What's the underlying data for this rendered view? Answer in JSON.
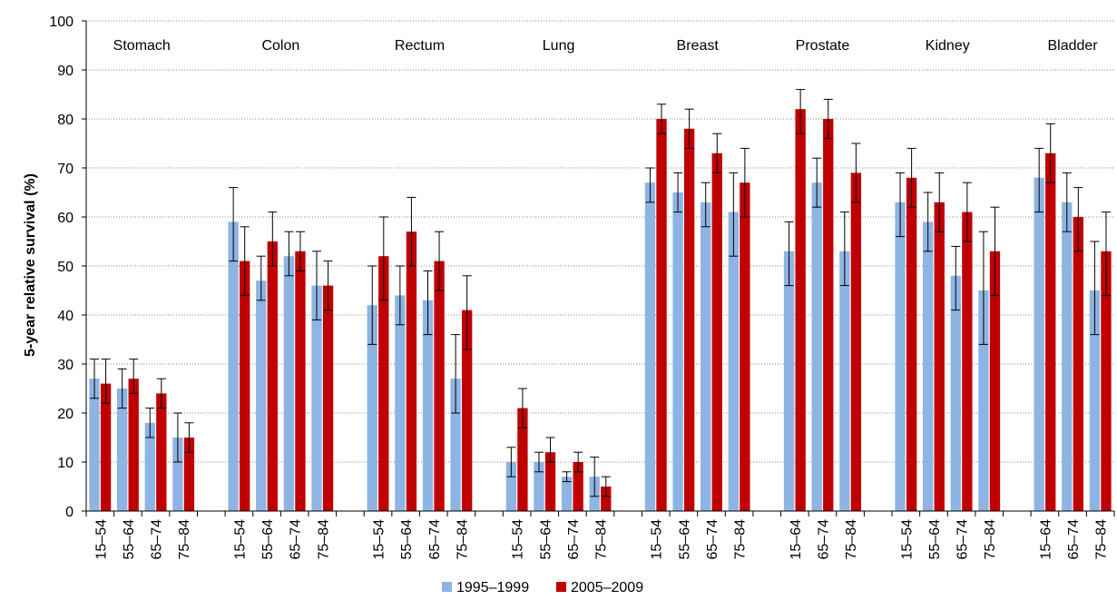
{
  "chart_data": {
    "type": "bar",
    "title": "",
    "xlabel": "",
    "ylabel": "5-year relative survival (%)",
    "ylim": [
      0,
      100
    ],
    "yticks": [
      0,
      10,
      20,
      30,
      40,
      50,
      60,
      70,
      80,
      90,
      100
    ],
    "grid": "horizontal dotted",
    "legend_position": "bottom",
    "series": [
      {
        "name": "1995–1999",
        "color": "#8EB4E3"
      },
      {
        "name": "2005–2009",
        "color": "#C00000"
      }
    ],
    "groups": [
      {
        "name": "Stomach",
        "categories": [
          {
            "label": "15–54",
            "values": [
              27,
              26
            ],
            "err_low": [
              23,
              22
            ],
            "err_high": [
              31,
              31
            ]
          },
          {
            "label": "55–64",
            "values": [
              25,
              27
            ],
            "err_low": [
              21,
              24
            ],
            "err_high": [
              29,
              31
            ]
          },
          {
            "label": "65–74",
            "values": [
              18,
              24
            ],
            "err_low": [
              15,
              21
            ],
            "err_high": [
              21,
              27
            ]
          },
          {
            "label": "75–84",
            "values": [
              15,
              15
            ],
            "err_low": [
              10,
              12
            ],
            "err_high": [
              20,
              18
            ]
          }
        ]
      },
      {
        "name": "Colon",
        "categories": [
          {
            "label": "15–54",
            "values": [
              59,
              51
            ],
            "err_low": [
              51,
              44
            ],
            "err_high": [
              66,
              58
            ]
          },
          {
            "label": "55–64",
            "values": [
              47,
              55
            ],
            "err_low": [
              43,
              50
            ],
            "err_high": [
              52,
              61
            ]
          },
          {
            "label": "65–74",
            "values": [
              52,
              53
            ],
            "err_low": [
              48,
              49
            ],
            "err_high": [
              57,
              57
            ]
          },
          {
            "label": "75–84",
            "values": [
              46,
              46
            ],
            "err_low": [
              39,
              41
            ],
            "err_high": [
              53,
              51
            ]
          }
        ]
      },
      {
        "name": "Rectum",
        "categories": [
          {
            "label": "15–54",
            "values": [
              42,
              52
            ],
            "err_low": [
              34,
              43
            ],
            "err_high": [
              50,
              60
            ]
          },
          {
            "label": "55–64",
            "values": [
              44,
              57
            ],
            "err_low": [
              38,
              50
            ],
            "err_high": [
              50,
              64
            ]
          },
          {
            "label": "65–74",
            "values": [
              43,
              51
            ],
            "err_low": [
              36,
              45
            ],
            "err_high": [
              49,
              57
            ]
          },
          {
            "label": "75–84",
            "values": [
              27,
              41
            ],
            "err_low": [
              20,
              33
            ],
            "err_high": [
              36,
              48
            ]
          }
        ]
      },
      {
        "name": "Lung",
        "categories": [
          {
            "label": "15–54",
            "values": [
              10,
              21
            ],
            "err_low": [
              7,
              17
            ],
            "err_high": [
              13,
              25
            ]
          },
          {
            "label": "55–64",
            "values": [
              10,
              12
            ],
            "err_low": [
              8,
              10
            ],
            "err_high": [
              12,
              15
            ]
          },
          {
            "label": "65–74",
            "values": [
              7,
              10
            ],
            "err_low": [
              6,
              8
            ],
            "err_high": [
              8,
              12
            ]
          },
          {
            "label": "75–84",
            "values": [
              7,
              5
            ],
            "err_low": [
              3,
              3
            ],
            "err_high": [
              11,
              7
            ]
          }
        ]
      },
      {
        "name": "Breast",
        "categories": [
          {
            "label": "15–54",
            "values": [
              67,
              80
            ],
            "err_low": [
              63,
              77
            ],
            "err_high": [
              70,
              83
            ]
          },
          {
            "label": "55–64",
            "values": [
              65,
              78
            ],
            "err_low": [
              61,
              74
            ],
            "err_high": [
              69,
              82
            ]
          },
          {
            "label": "65–74",
            "values": [
              63,
              73
            ],
            "err_low": [
              58,
              69
            ],
            "err_high": [
              67,
              77
            ]
          },
          {
            "label": "75–84",
            "values": [
              61,
              67
            ],
            "err_low": [
              52,
              60
            ],
            "err_high": [
              69,
              74
            ]
          }
        ]
      },
      {
        "name": "Prostate",
        "categories": [
          {
            "label": "15–64",
            "values": [
              53,
              82
            ],
            "err_low": [
              46,
              77
            ],
            "err_high": [
              59,
              86
            ]
          },
          {
            "label": "65–74",
            "values": [
              67,
              80
            ],
            "err_low": [
              62,
              76
            ],
            "err_high": [
              72,
              84
            ]
          },
          {
            "label": "75–84",
            "values": [
              53,
              69
            ],
            "err_low": [
              46,
              63
            ],
            "err_high": [
              61,
              75
            ]
          }
        ]
      },
      {
        "name": "Kidney",
        "categories": [
          {
            "label": "15–54",
            "values": [
              63,
              68
            ],
            "err_low": [
              56,
              62
            ],
            "err_high": [
              69,
              74
            ]
          },
          {
            "label": "55–64",
            "values": [
              59,
              63
            ],
            "err_low": [
              53,
              57
            ],
            "err_high": [
              65,
              69
            ]
          },
          {
            "label": "65–74",
            "values": [
              48,
              61
            ],
            "err_low": [
              41,
              55
            ],
            "err_high": [
              54,
              67
            ]
          },
          {
            "label": "75–84",
            "values": [
              45,
              53
            ],
            "err_low": [
              34,
              44
            ],
            "err_high": [
              57,
              62
            ]
          }
        ]
      },
      {
        "name": "Bladder",
        "categories": [
          {
            "label": "15–64",
            "values": [
              68,
              73
            ],
            "err_low": [
              61,
              67
            ],
            "err_high": [
              74,
              79
            ]
          },
          {
            "label": "65–74",
            "values": [
              63,
              60
            ],
            "err_low": [
              57,
              53
            ],
            "err_high": [
              69,
              66
            ]
          },
          {
            "label": "75–84",
            "values": [
              45,
              53
            ],
            "err_low": [
              36,
              44
            ],
            "err_high": [
              55,
              61
            ]
          }
        ]
      }
    ]
  }
}
